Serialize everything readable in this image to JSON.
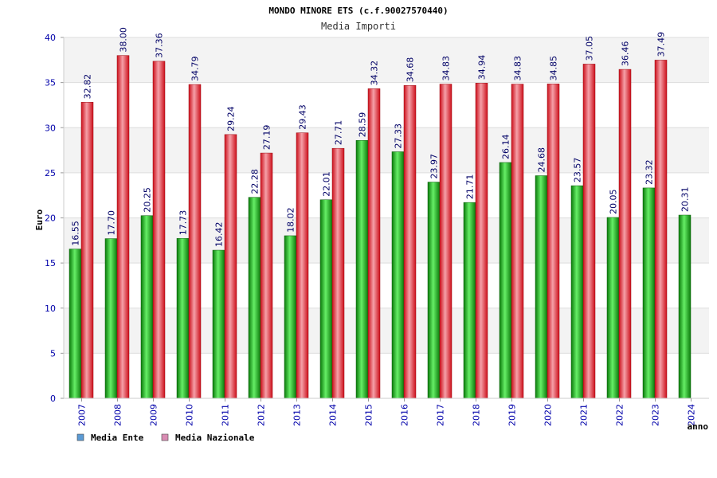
{
  "chart_data": {
    "type": "bar",
    "title": "MONDO MINORE ETS (c.f.90027570440)",
    "subtitle": "Media Importi",
    "xlabel": "anno",
    "ylabel": "Euro",
    "ylim": [
      0,
      40
    ],
    "yticks": [
      "0",
      "5",
      "10",
      "15",
      "20",
      "25",
      "30",
      "35",
      "40"
    ],
    "grid": true,
    "legend_position": "bottom-left",
    "categories": [
      "2007",
      "2008",
      "2009",
      "2010",
      "2011",
      "2012",
      "2013",
      "2014",
      "2015",
      "2016",
      "2017",
      "2018",
      "2019",
      "2020",
      "2021",
      "2022",
      "2023",
      "2024"
    ],
    "series": [
      {
        "name": "Media Ente",
        "legend_color": "#5b9bd5",
        "bar_color": "#22aa22",
        "values": [
          16.55,
          17.7,
          20.25,
          17.73,
          16.42,
          22.28,
          18.02,
          22.01,
          28.59,
          27.33,
          23.97,
          21.71,
          26.14,
          24.68,
          23.57,
          20.05,
          23.32,
          20.31
        ],
        "labels": [
          "16.55",
          "17.70",
          "20.25",
          "17.73",
          "16.42",
          "22.28",
          "18.02",
          "22.01",
          "28.59",
          "27.33",
          "23.97",
          "21.71",
          "26.14",
          "24.68",
          "23.57",
          "20.05",
          "23.32",
          "20.31"
        ]
      },
      {
        "name": "Media Nazionale",
        "legend_color": "#d98cb3",
        "bar_color": "#ee2222",
        "values": [
          32.82,
          38.0,
          37.36,
          34.79,
          29.24,
          27.19,
          29.43,
          27.71,
          34.32,
          34.68,
          34.83,
          34.94,
          34.83,
          34.85,
          37.05,
          36.46,
          37.49,
          null
        ],
        "labels": [
          "32.82",
          "38.00",
          "37.36",
          "34.79",
          "29.24",
          "27.19",
          "29.43",
          "27.71",
          "34.32",
          "34.68",
          "34.83",
          "34.94",
          "34.83",
          "34.85",
          "37.05",
          "36.46",
          "37.49",
          ""
        ]
      }
    ]
  }
}
